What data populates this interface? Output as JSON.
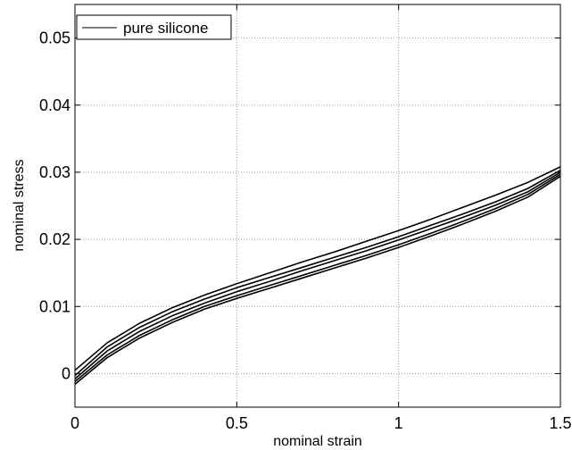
{
  "chart_data": {
    "type": "line",
    "title": "",
    "xlabel": "nominal strain",
    "ylabel": "nominal stress",
    "xlim": [
      0,
      1.5
    ],
    "ylim": [
      -0.005,
      0.055
    ],
    "x_ticks": [
      0,
      0.5,
      1,
      1.5
    ],
    "x_tick_labels": [
      "0",
      "0.5",
      "1",
      "1.5"
    ],
    "y_ticks": [
      0,
      0.01,
      0.02,
      0.03,
      0.04,
      0.05
    ],
    "y_tick_labels": [
      "0",
      "0.01",
      "0.02",
      "0.03",
      "0.04",
      "0.05"
    ],
    "grid": true,
    "legend": {
      "position": "top-left",
      "entries": [
        "pure silicone"
      ]
    },
    "line_color": "#000000",
    "series": [
      {
        "name": "pure silicone",
        "x": [
          0,
          0.1,
          0.2,
          0.3,
          0.4,
          0.5,
          0.6,
          0.7,
          0.8,
          0.9,
          1.0,
          1.1,
          1.2,
          1.3,
          1.4,
          1.5
        ],
        "y": [
          0.0005,
          0.0046,
          0.0075,
          0.0098,
          0.0117,
          0.0134,
          0.015,
          0.0166,
          0.0181,
          0.0197,
          0.0213,
          0.023,
          0.0248,
          0.0266,
          0.0285,
          0.0308
        ]
      },
      {
        "x": [
          0,
          0.1,
          0.2,
          0.3,
          0.4,
          0.5,
          0.6,
          0.7,
          0.8,
          0.9,
          1.0,
          1.1,
          1.2,
          1.3,
          1.4,
          1.5
        ],
        "y": [
          -0.0003,
          0.004,
          0.0069,
          0.0092,
          0.0111,
          0.0128,
          0.0143,
          0.0158,
          0.0173,
          0.0188,
          0.0204,
          0.0221,
          0.0238,
          0.0256,
          0.0276,
          0.0303
        ]
      },
      {
        "x": [
          0,
          0.1,
          0.2,
          0.3,
          0.4,
          0.5,
          0.6,
          0.7,
          0.8,
          0.9,
          1.0,
          1.1,
          1.2,
          1.3,
          1.4,
          1.5
        ],
        "y": [
          -0.0008,
          0.0034,
          0.0063,
          0.0086,
          0.0105,
          0.0122,
          0.0137,
          0.0153,
          0.0168,
          0.0183,
          0.0199,
          0.0216,
          0.0233,
          0.0251,
          0.0271,
          0.03
        ]
      },
      {
        "x": [
          0,
          0.1,
          0.2,
          0.3,
          0.4,
          0.5,
          0.6,
          0.7,
          0.8,
          0.9,
          1.0,
          1.1,
          1.2,
          1.3,
          1.4,
          1.5
        ],
        "y": [
          -0.0012,
          0.0028,
          0.0057,
          0.008,
          0.01,
          0.0116,
          0.0131,
          0.0146,
          0.0161,
          0.0176,
          0.0192,
          0.0209,
          0.0227,
          0.0246,
          0.0267,
          0.0297
        ]
      },
      {
        "x": [
          0,
          0.1,
          0.2,
          0.3,
          0.4,
          0.5,
          0.6,
          0.7,
          0.8,
          0.9,
          1.0,
          1.1,
          1.2,
          1.3,
          1.4,
          1.5
        ],
        "y": [
          -0.0016,
          0.0024,
          0.0053,
          0.0076,
          0.0096,
          0.0112,
          0.0127,
          0.0142,
          0.0157,
          0.0172,
          0.0188,
          0.0205,
          0.0223,
          0.0242,
          0.0263,
          0.0294
        ]
      }
    ]
  }
}
